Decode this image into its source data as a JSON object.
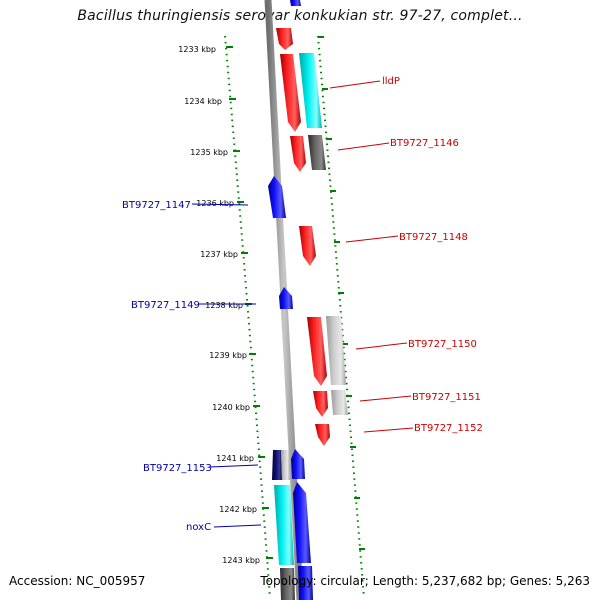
{
  "header": {
    "title": "Bacillus thuringiensis serovar konkukian str. 97-27, complet..."
  },
  "footer": {
    "accession": "Accession: NC_005957",
    "topology": "Topology: circular; Length: 5,237,682 bp; Genes: 5,263"
  },
  "ticks": [
    "1233 kbp",
    "1234 kbp",
    "1235 kbp",
    "1236 kbp",
    "1237 kbp",
    "1238 kbp",
    "1239 kbp",
    "1240 kbp",
    "1241 kbp",
    "1242 kbp",
    "1243 kbp"
  ],
  "labels": {
    "right": [
      "lldP",
      "BT9727_1146",
      "BT9727_1148",
      "BT9727_1150",
      "BT9727_1151",
      "BT9727_1152"
    ],
    "left": [
      "BT9727_1147",
      "BT9727_1149",
      "BT9727_1153",
      "noxC"
    ]
  },
  "colors": {
    "forward_gene": "#ff0000",
    "reverse_gene": "#0000ff",
    "cds_cyan": "#00e5e5",
    "cds_gray": "#888888",
    "backbone": "#9a9a9a",
    "tick": "#008000",
    "label_red": "#cc0000",
    "label_blue": "#0000aa"
  }
}
